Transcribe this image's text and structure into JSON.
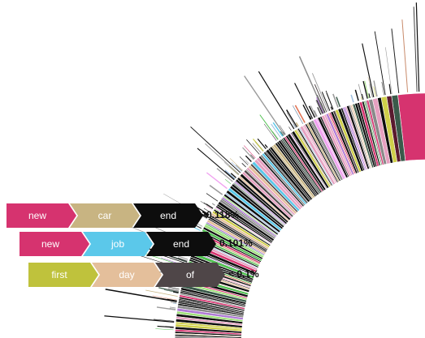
{
  "sequences": [
    {
      "percentage": "0.118%",
      "steps": [
        {
          "word": "new",
          "color": "#d6336f",
          "text_color": "#ffffff"
        },
        {
          "word": "car",
          "color": "#c8b482",
          "text_color": "#ffffff"
        },
        {
          "word": "end",
          "color": "#0d0d0d",
          "text_color": "#ffffff"
        }
      ]
    },
    {
      "percentage": "0.101%",
      "steps": [
        {
          "word": "new",
          "color": "#d6336f",
          "text_color": "#ffffff"
        },
        {
          "word": "job",
          "color": "#5bc8ea",
          "text_color": "#ffffff"
        },
        {
          "word": "end",
          "color": "#0d0d0d",
          "text_color": "#ffffff"
        }
      ]
    },
    {
      "percentage": "< 0.1%",
      "steps": [
        {
          "word": "first",
          "color": "#bfc23c",
          "text_color": "#ffffff"
        },
        {
          "word": "day",
          "color": "#e4bf9b",
          "text_color": "#ffffff"
        },
        {
          "word": "of",
          "color": "#4f4648",
          "text_color": "#ffffff"
        }
      ]
    }
  ],
  "sunburst": {
    "inner_ring_colors": [
      "#d6336f",
      "#3a5a4a",
      "#5a1a2e",
      "#cfcf4a",
      "#0d0d0d",
      "#e6a0c0",
      "#8a8a8a",
      "#9fe07a",
      "#b07ad6",
      "#0d0d0d",
      "#50c050",
      "#e07050",
      "#3a8a6a",
      "#f0a0f0",
      "#202020",
      "#a0c0e0"
    ]
  }
}
